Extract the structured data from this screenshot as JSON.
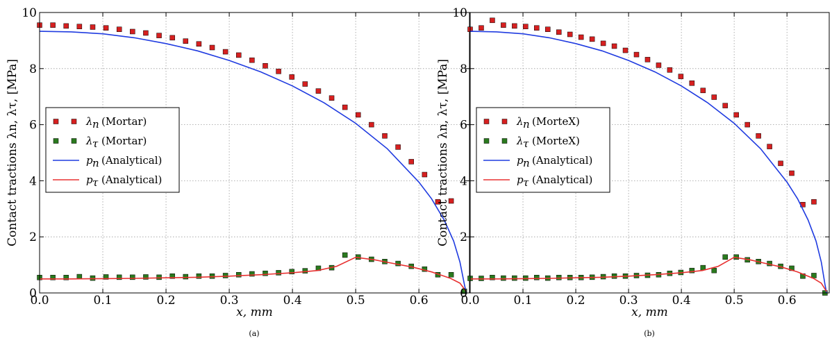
{
  "chart_data": [
    {
      "type": "scatter",
      "xlabel": "x, mm",
      "ylabel": "Contact tractions λn, λτ, [MPa]",
      "xlim": [
        0.0,
        0.68
      ],
      "ylim": [
        0,
        10
      ],
      "xticks": [
        0.0,
        0.1,
        0.2,
        0.3,
        0.4,
        0.5,
        0.6
      ],
      "xtick_labels": [
        "0.0",
        "0.1",
        "0.2",
        "0.3",
        "0.4",
        "0.5",
        "0.6"
      ],
      "yticks": [
        0,
        2,
        4,
        6,
        8,
        10
      ],
      "ytick_labels": [
        "0",
        "2",
        "4",
        "6",
        "8",
        "10"
      ],
      "grid": true,
      "legend_position": "center-left",
      "caption": "(a)",
      "series": [
        {
          "name": "λn (Mortar)",
          "legend_symbol": "λn",
          "legend_suffix": "(Mortar)",
          "kind": "marker",
          "color": "#d62020",
          "points": [
            [
              0.0,
              9.55
            ],
            [
              0.021,
              9.55
            ],
            [
              0.042,
              9.52
            ],
            [
              0.063,
              9.5
            ],
            [
              0.084,
              9.48
            ],
            [
              0.105,
              9.45
            ],
            [
              0.126,
              9.4
            ],
            [
              0.147,
              9.32
            ],
            [
              0.168,
              9.27
            ],
            [
              0.189,
              9.18
            ],
            [
              0.21,
              9.1
            ],
            [
              0.231,
              8.98
            ],
            [
              0.252,
              8.88
            ],
            [
              0.273,
              8.75
            ],
            [
              0.294,
              8.6
            ],
            [
              0.315,
              8.48
            ],
            [
              0.336,
              8.3
            ],
            [
              0.357,
              8.1
            ],
            [
              0.378,
              7.9
            ],
            [
              0.399,
              7.7
            ],
            [
              0.42,
              7.45
            ],
            [
              0.441,
              7.2
            ],
            [
              0.462,
              6.95
            ],
            [
              0.483,
              6.62
            ],
            [
              0.504,
              6.35
            ],
            [
              0.525,
              6.0
            ],
            [
              0.546,
              5.6
            ],
            [
              0.567,
              5.2
            ],
            [
              0.588,
              4.68
            ],
            [
              0.609,
              4.22
            ],
            [
              0.63,
              3.25
            ],
            [
              0.651,
              3.28
            ]
          ]
        },
        {
          "name": "λτ (Mortar)",
          "legend_symbol": "λτ",
          "legend_suffix": "(Mortar)",
          "kind": "marker",
          "color": "#2a7a1e",
          "points": [
            [
              0.0,
              0.55
            ],
            [
              0.021,
              0.55
            ],
            [
              0.042,
              0.55
            ],
            [
              0.063,
              0.58
            ],
            [
              0.084,
              0.53
            ],
            [
              0.105,
              0.57
            ],
            [
              0.126,
              0.56
            ],
            [
              0.147,
              0.56
            ],
            [
              0.168,
              0.57
            ],
            [
              0.189,
              0.56
            ],
            [
              0.21,
              0.6
            ],
            [
              0.231,
              0.58
            ],
            [
              0.252,
              0.6
            ],
            [
              0.273,
              0.6
            ],
            [
              0.294,
              0.62
            ],
            [
              0.315,
              0.65
            ],
            [
              0.336,
              0.68
            ],
            [
              0.357,
              0.7
            ],
            [
              0.378,
              0.72
            ],
            [
              0.399,
              0.76
            ],
            [
              0.42,
              0.79
            ],
            [
              0.441,
              0.88
            ],
            [
              0.462,
              0.9
            ],
            [
              0.483,
              1.35
            ],
            [
              0.504,
              1.28
            ],
            [
              0.525,
              1.2
            ],
            [
              0.546,
              1.12
            ],
            [
              0.567,
              1.05
            ],
            [
              0.588,
              0.95
            ],
            [
              0.609,
              0.85
            ],
            [
              0.63,
              0.65
            ],
            [
              0.651,
              0.65
            ],
            [
              0.672,
              0.06
            ]
          ]
        },
        {
          "name": "pn (Analytical)",
          "legend_symbol": "pn",
          "legend_suffix": "(Analytical)",
          "kind": "line",
          "color": "#1f3be0",
          "points": [
            [
              0.0,
              9.33
            ],
            [
              0.05,
              9.31
            ],
            [
              0.1,
              9.24
            ],
            [
              0.15,
              9.1
            ],
            [
              0.2,
              8.89
            ],
            [
              0.25,
              8.63
            ],
            [
              0.3,
              8.29
            ],
            [
              0.35,
              7.88
            ],
            [
              0.4,
              7.38
            ],
            [
              0.45,
              6.78
            ],
            [
              0.5,
              6.05
            ],
            [
              0.55,
              5.14
            ],
            [
              0.6,
              3.95
            ],
            [
              0.62,
              3.36
            ],
            [
              0.64,
              2.6
            ],
            [
              0.655,
              1.85
            ],
            [
              0.665,
              1.1
            ],
            [
              0.672,
              0.3
            ],
            [
              0.675,
              0.0
            ]
          ]
        },
        {
          "name": "pτ (Analytical)",
          "legend_symbol": "pτ",
          "legend_suffix": "(Analytical)",
          "kind": "line",
          "color": "#e83030",
          "points": [
            [
              0.0,
              0.5
            ],
            [
              0.05,
              0.5
            ],
            [
              0.1,
              0.51
            ],
            [
              0.15,
              0.52
            ],
            [
              0.2,
              0.54
            ],
            [
              0.25,
              0.56
            ],
            [
              0.3,
              0.6
            ],
            [
              0.35,
              0.65
            ],
            [
              0.4,
              0.72
            ],
            [
              0.44,
              0.8
            ],
            [
              0.47,
              0.95
            ],
            [
              0.5,
              1.27
            ],
            [
              0.53,
              1.18
            ],
            [
              0.56,
              1.05
            ],
            [
              0.59,
              0.92
            ],
            [
              0.62,
              0.75
            ],
            [
              0.65,
              0.52
            ],
            [
              0.665,
              0.35
            ],
            [
              0.675,
              0.05
            ]
          ]
        }
      ]
    },
    {
      "type": "scatter",
      "xlabel": "x, mm",
      "ylabel": "Contact tractions λn, λτ, [MPa]",
      "xlim": [
        0.0,
        0.68
      ],
      "ylim": [
        0,
        10
      ],
      "xticks": [
        0.0,
        0.1,
        0.2,
        0.3,
        0.4,
        0.5,
        0.6
      ],
      "xtick_labels": [
        "0.0",
        "0.1",
        "0.2",
        "0.3",
        "0.4",
        "0.5",
        "0.6"
      ],
      "yticks": [
        0,
        2,
        4,
        6,
        8,
        10
      ],
      "ytick_labels": [
        "0",
        "2",
        "4",
        "6",
        "8",
        "10"
      ],
      "grid": true,
      "legend_position": "center-left",
      "caption": "(b)",
      "series": [
        {
          "name": "λn (MorteX)",
          "legend_symbol": "λn",
          "legend_suffix": "(MorteX)",
          "kind": "marker",
          "color": "#d62020",
          "points": [
            [
              0.0,
              9.4
            ],
            [
              0.021,
              9.45
            ],
            [
              0.042,
              9.72
            ],
            [
              0.063,
              9.55
            ],
            [
              0.084,
              9.52
            ],
            [
              0.105,
              9.5
            ],
            [
              0.126,
              9.45
            ],
            [
              0.147,
              9.4
            ],
            [
              0.168,
              9.3
            ],
            [
              0.189,
              9.22
            ],
            [
              0.21,
              9.12
            ],
            [
              0.231,
              9.05
            ],
            [
              0.252,
              8.9
            ],
            [
              0.273,
              8.8
            ],
            [
              0.294,
              8.65
            ],
            [
              0.315,
              8.5
            ],
            [
              0.336,
              8.32
            ],
            [
              0.357,
              8.12
            ],
            [
              0.378,
              7.95
            ],
            [
              0.399,
              7.72
            ],
            [
              0.42,
              7.48
            ],
            [
              0.441,
              7.22
            ],
            [
              0.462,
              6.98
            ],
            [
              0.483,
              6.68
            ],
            [
              0.504,
              6.35
            ],
            [
              0.525,
              6.0
            ],
            [
              0.546,
              5.6
            ],
            [
              0.567,
              5.22
            ],
            [
              0.588,
              4.62
            ],
            [
              0.609,
              4.27
            ],
            [
              0.63,
              3.15
            ],
            [
              0.651,
              3.25
            ]
          ]
        },
        {
          "name": "λτ (MorteX)",
          "legend_symbol": "λτ",
          "legend_suffix": "(MorteX)",
          "kind": "marker",
          "color": "#2a7a1e",
          "points": [
            [
              0.0,
              0.52
            ],
            [
              0.021,
              0.52
            ],
            [
              0.042,
              0.55
            ],
            [
              0.063,
              0.53
            ],
            [
              0.084,
              0.53
            ],
            [
              0.105,
              0.53
            ],
            [
              0.126,
              0.55
            ],
            [
              0.147,
              0.53
            ],
            [
              0.168,
              0.55
            ],
            [
              0.189,
              0.55
            ],
            [
              0.21,
              0.55
            ],
            [
              0.231,
              0.56
            ],
            [
              0.252,
              0.58
            ],
            [
              0.273,
              0.6
            ],
            [
              0.294,
              0.6
            ],
            [
              0.315,
              0.62
            ],
            [
              0.336,
              0.63
            ],
            [
              0.357,
              0.65
            ],
            [
              0.378,
              0.7
            ],
            [
              0.399,
              0.73
            ],
            [
              0.42,
              0.8
            ],
            [
              0.441,
              0.9
            ],
            [
              0.462,
              0.8
            ],
            [
              0.483,
              1.28
            ],
            [
              0.504,
              1.28
            ],
            [
              0.525,
              1.18
            ],
            [
              0.546,
              1.12
            ],
            [
              0.567,
              1.05
            ],
            [
              0.588,
              0.95
            ],
            [
              0.609,
              0.88
            ],
            [
              0.63,
              0.6
            ],
            [
              0.651,
              0.62
            ],
            [
              0.672,
              0.0
            ]
          ]
        },
        {
          "name": "pn (Analytical)",
          "legend_symbol": "pn",
          "legend_suffix": "(Analytical)",
          "kind": "line",
          "color": "#1f3be0",
          "points": [
            [
              0.0,
              9.33
            ],
            [
              0.05,
              9.31
            ],
            [
              0.1,
              9.24
            ],
            [
              0.15,
              9.1
            ],
            [
              0.2,
              8.89
            ],
            [
              0.25,
              8.63
            ],
            [
              0.3,
              8.29
            ],
            [
              0.35,
              7.88
            ],
            [
              0.4,
              7.38
            ],
            [
              0.45,
              6.78
            ],
            [
              0.5,
              6.05
            ],
            [
              0.55,
              5.14
            ],
            [
              0.6,
              3.95
            ],
            [
              0.62,
              3.36
            ],
            [
              0.64,
              2.6
            ],
            [
              0.655,
              1.85
            ],
            [
              0.665,
              1.1
            ],
            [
              0.672,
              0.3
            ],
            [
              0.675,
              0.0
            ]
          ]
        },
        {
          "name": "pτ (Analytical)",
          "legend_symbol": "pτ",
          "legend_suffix": "(Analytical)",
          "kind": "line",
          "color": "#e83030",
          "points": [
            [
              0.0,
              0.5
            ],
            [
              0.05,
              0.5
            ],
            [
              0.1,
              0.51
            ],
            [
              0.15,
              0.52
            ],
            [
              0.2,
              0.54
            ],
            [
              0.25,
              0.56
            ],
            [
              0.3,
              0.6
            ],
            [
              0.35,
              0.65
            ],
            [
              0.4,
              0.72
            ],
            [
              0.44,
              0.8
            ],
            [
              0.47,
              0.95
            ],
            [
              0.5,
              1.27
            ],
            [
              0.53,
              1.18
            ],
            [
              0.56,
              1.05
            ],
            [
              0.59,
              0.92
            ],
            [
              0.62,
              0.75
            ],
            [
              0.65,
              0.52
            ],
            [
              0.665,
              0.35
            ],
            [
              0.675,
              0.05
            ]
          ]
        }
      ]
    }
  ]
}
